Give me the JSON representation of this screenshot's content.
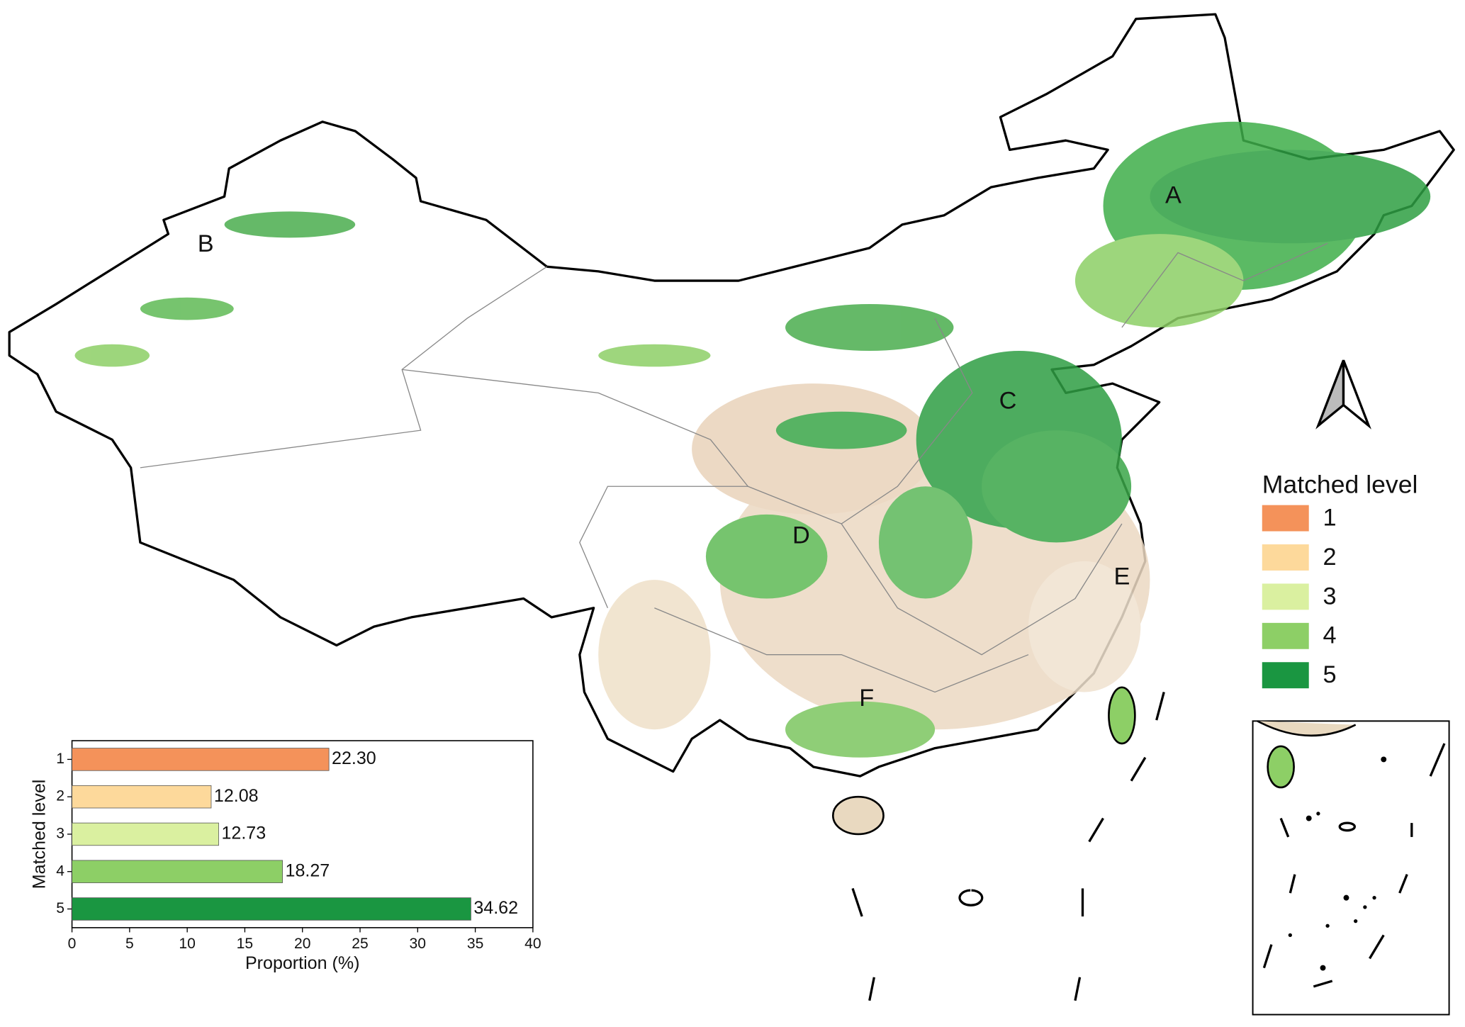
{
  "map": {
    "region_labels": [
      "A",
      "B",
      "C",
      "D",
      "E",
      "F"
    ]
  },
  "legend": {
    "title": "Matched level"
  },
  "chart_data": {
    "type": "bar",
    "orientation": "horizontal",
    "categories": [
      "1",
      "2",
      "3",
      "4",
      "5"
    ],
    "values": [
      22.3,
      12.08,
      12.73,
      18.27,
      34.62
    ],
    "value_labels": [
      "22.30",
      "12.08",
      "12.73",
      "18.27",
      "34.62"
    ],
    "colors": [
      "#f4925a",
      "#fdd99b",
      "#daf0a0",
      "#8dcf66",
      "#1a9641"
    ],
    "xlim": [
      0,
      40
    ],
    "xticks": [
      0,
      5,
      10,
      15,
      20,
      25,
      30,
      35,
      40
    ],
    "xlabel": "Proportion (%)",
    "ylabel": "Matched level"
  }
}
